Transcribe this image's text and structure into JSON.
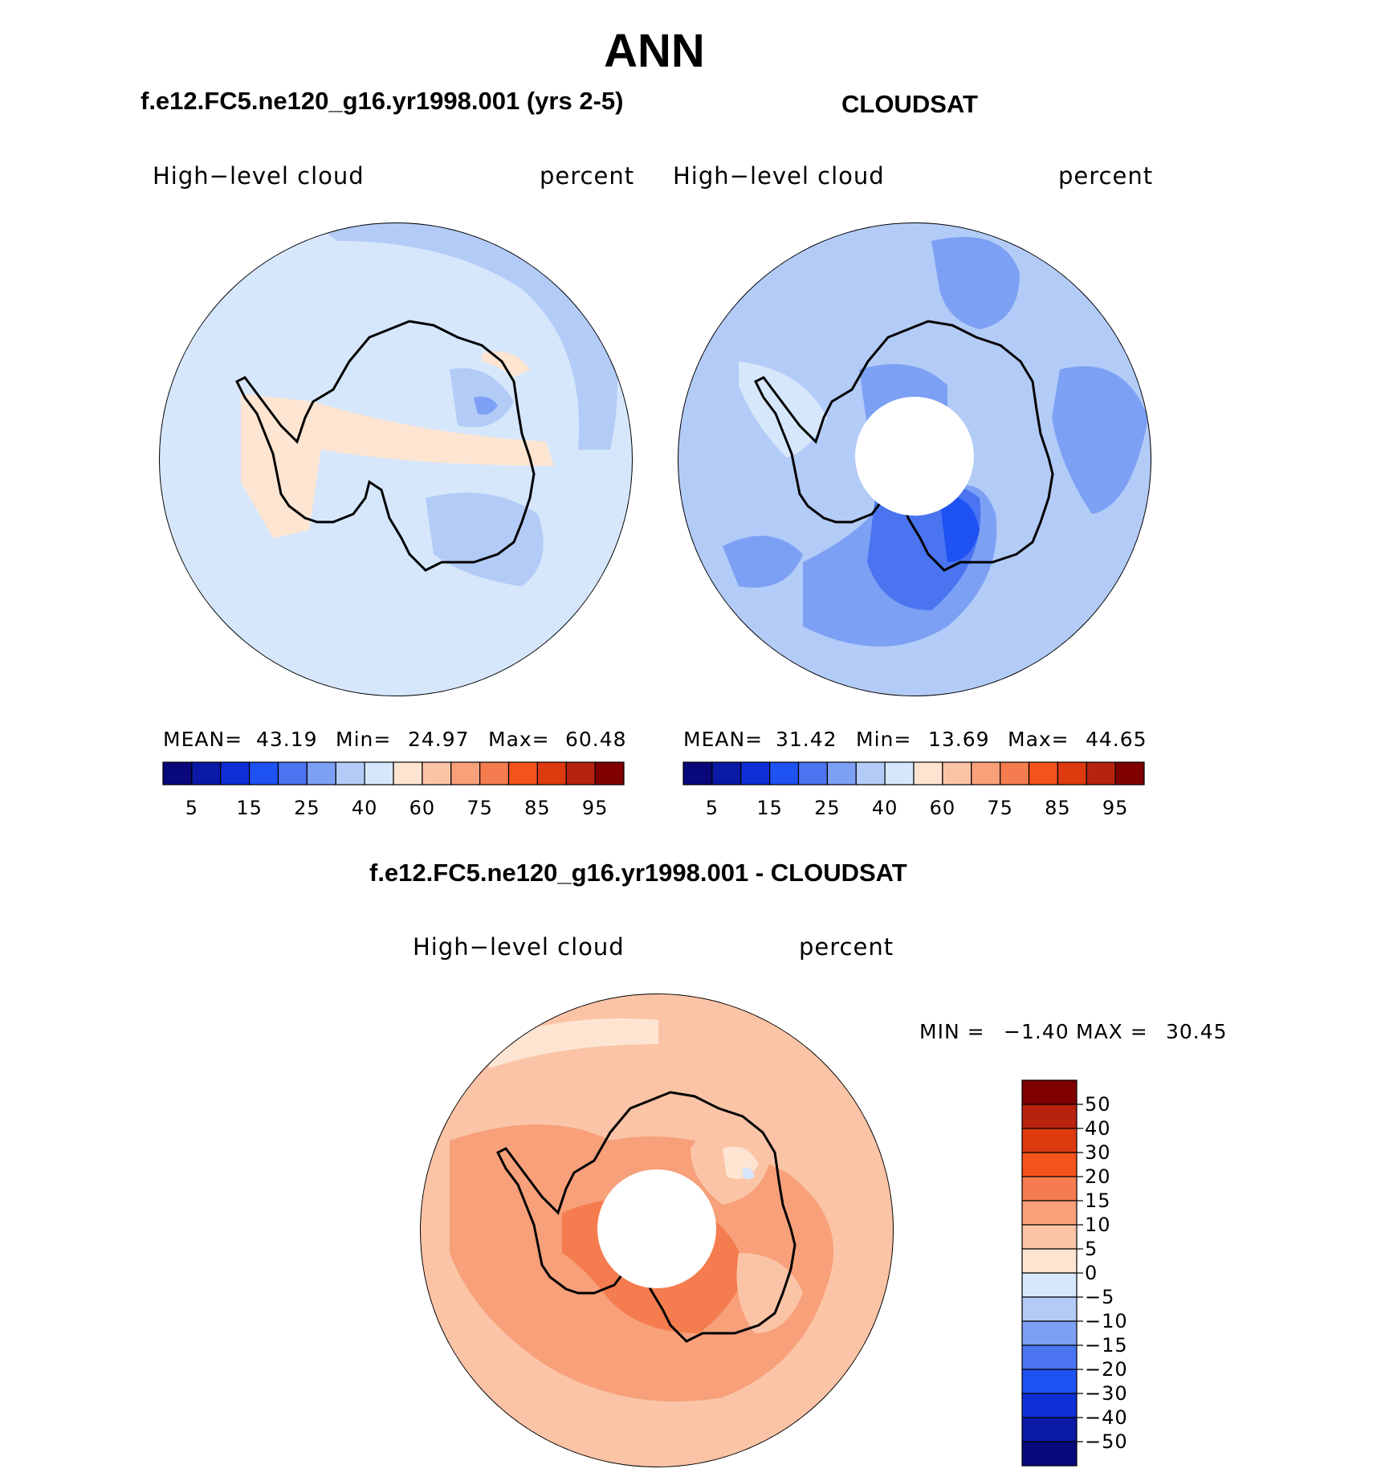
{
  "title": "ANN",
  "panels": {
    "model": {
      "title": "f.e12.FC5.ne120_g16.yr1998.001 (yrs 2-5)",
      "variable": "High−level cloud",
      "units": "percent",
      "stats": {
        "mean_label": "MEAN=",
        "mean": "43.19",
        "min_label": "Min=",
        "min": "24.97",
        "max_label": "Max=",
        "max": "60.48"
      }
    },
    "obs": {
      "title": "CLOUDSAT",
      "variable": "High−level cloud",
      "units": "percent",
      "stats": {
        "mean_label": "MEAN=",
        "mean": "31.42",
        "min_label": "Min=",
        "min": "13.69",
        "max_label": "Max=",
        "max": "44.65"
      }
    },
    "diff": {
      "title": "f.e12.FC5.ne120_g16.yr1998.001 - CLOUDSAT",
      "variable": "High−level cloud",
      "units": "percent",
      "stats": {
        "min_label": "MIN =",
        "min": "−1.40",
        "max_label": "MAX =",
        "max": "30.45"
      }
    }
  },
  "colorbar_abs": {
    "labels": [
      "5",
      "15",
      "25",
      "40",
      "60",
      "75",
      "85",
      "95"
    ],
    "colors": [
      "#08087a",
      "#0a1aa6",
      "#0f2fd6",
      "#1f52f2",
      "#4a74f0",
      "#7ca0f4",
      "#b3cbf7",
      "#d6e7fc",
      "#fde5d2",
      "#fbc4a6",
      "#f7a07a",
      "#f47c4e",
      "#f5531c",
      "#de3a0f",
      "#b82310",
      "#800000"
    ]
  },
  "colorbar_diff": {
    "labels": [
      "50",
      "40",
      "30",
      "20",
      "15",
      "10",
      "5",
      "0",
      "−5",
      "−10",
      "−15",
      "−20",
      "−30",
      "−40",
      "−50"
    ],
    "colors": [
      "#800000",
      "#b82310",
      "#de3a0f",
      "#f5531c",
      "#f47c4e",
      "#f7a07a",
      "#fbc4a6",
      "#fde5d2",
      "#d6e7fc",
      "#b3cbf7",
      "#7ca0f4",
      "#4a74f0",
      "#1f52f2",
      "#0f2fd6",
      "#0a1aa6",
      "#08087a"
    ]
  },
  "colors": {
    "model_base": "#d6e7fc",
    "obs_base": "#b3cbf7",
    "diff_base": "#fbc4a6"
  }
}
